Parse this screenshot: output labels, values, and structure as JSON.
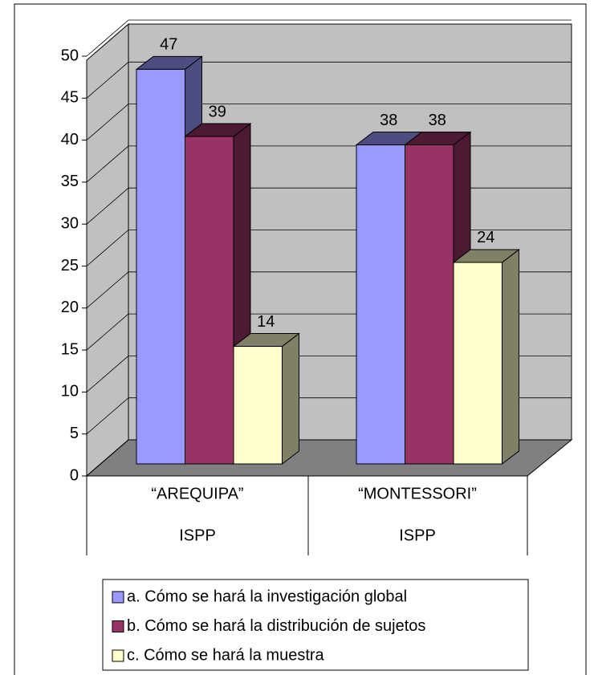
{
  "chart_data": {
    "type": "bar3d",
    "categories": [
      [
        "“AREQUIPA”",
        "ISPP"
      ],
      [
        "“MONTESSORI”",
        "ISPP"
      ]
    ],
    "series": [
      {
        "name": "a. Cómo se hará la investigación global",
        "color": "#9999ff",
        "side": "#4d4d80",
        "values": [
          47,
          38
        ]
      },
      {
        "name": "b. Cómo se hará la distribución de sujetos",
        "color": "#993366",
        "side": "#4d1a33",
        "values": [
          39,
          38
        ]
      },
      {
        "name": "c. Cómo se hará la muestra",
        "color": "#ffffcc",
        "side": "#808066",
        "values": [
          14,
          24
        ]
      }
    ],
    "ylim": [
      0,
      50
    ],
    "yticks": [
      0,
      5,
      10,
      15,
      20,
      25,
      30,
      35,
      40,
      45,
      50
    ],
    "grid": true
  }
}
